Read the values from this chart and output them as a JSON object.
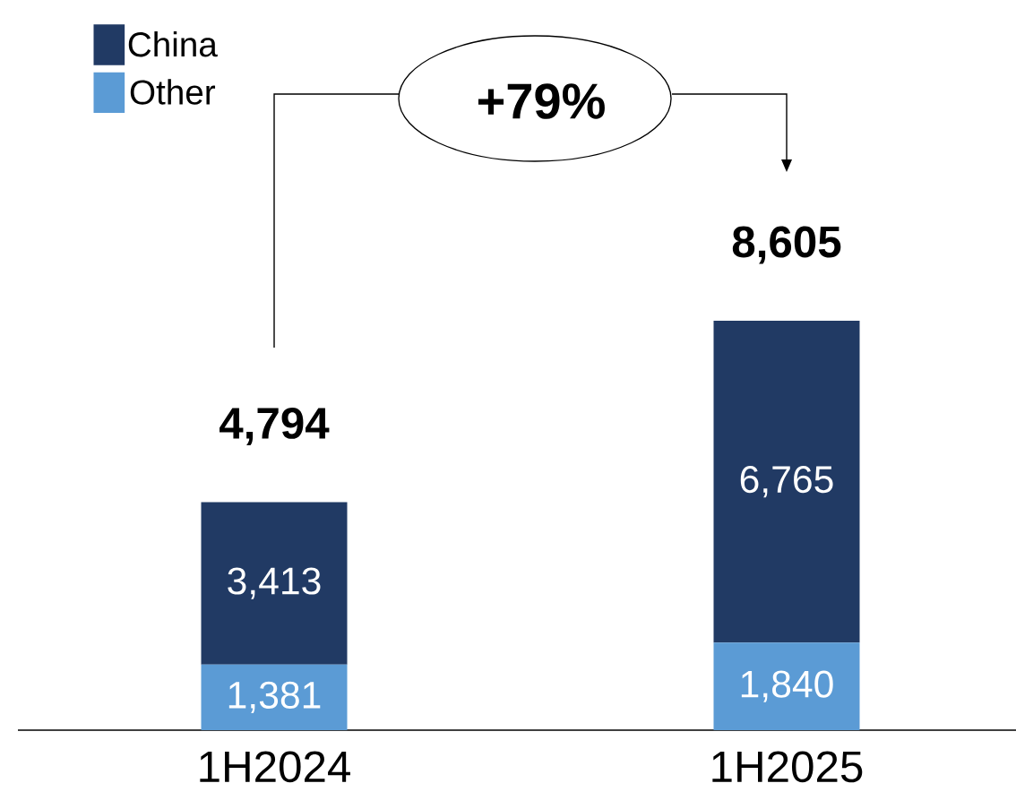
{
  "chart_data": {
    "type": "bar",
    "stacked": true,
    "categories": [
      "1H2024",
      "1H2025"
    ],
    "series": [
      {
        "name": "Other",
        "color": "#5b9bd5",
        "values": [
          1381,
          1840
        ],
        "value_labels": [
          "1,381",
          "1,840"
        ]
      },
      {
        "name": "China",
        "color": "#213a64",
        "values": [
          3413,
          6765
        ],
        "value_labels": [
          "3,413",
          "6,765"
        ]
      }
    ],
    "totals": [
      "4,794",
      "8,605"
    ],
    "annotations": [
      "+79%"
    ],
    "legend": "top left"
  }
}
